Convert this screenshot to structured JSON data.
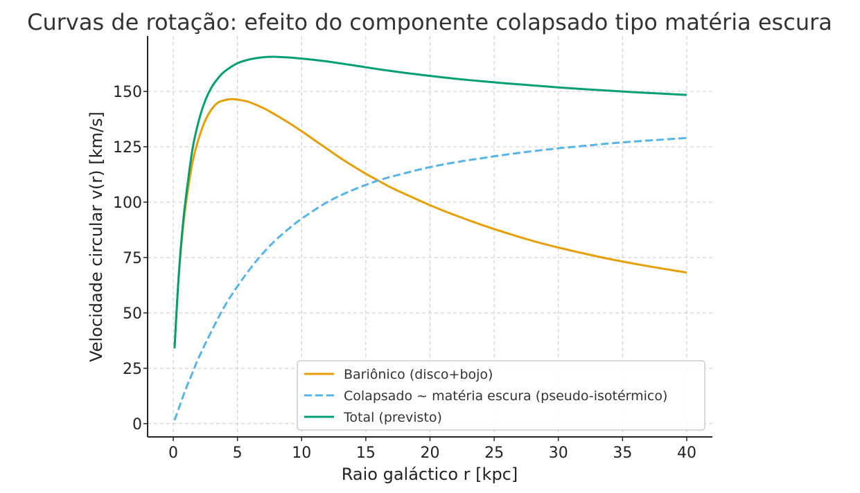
{
  "chart_data": {
    "type": "line",
    "title": "Curvas de rotação: efeito do componente colapsado tipo matéria escura",
    "xlabel": "Raio galáctico r [kpc]",
    "ylabel": "Velocidade circular v(r) [km/s]",
    "xlim": [
      -2,
      42
    ],
    "ylim": [
      -6,
      175
    ],
    "xticks": [
      0,
      5,
      10,
      15,
      20,
      25,
      30,
      35,
      40
    ],
    "yticks": [
      0,
      25,
      50,
      75,
      100,
      125,
      150
    ],
    "grid": true,
    "legend_position": "lower-right",
    "series": [
      {
        "name": "Bariônico (disco+bojo)",
        "color": "#E69F00",
        "dash": "solid",
        "x": [
          0.1,
          0.3,
          0.5,
          0.75,
          1,
          1.5,
          2,
          2.5,
          3,
          3.5,
          4,
          4.5,
          5,
          5.5,
          6,
          7,
          8,
          9,
          10,
          11,
          12,
          13,
          14,
          15,
          16,
          17,
          18,
          20,
          22,
          24,
          26,
          28,
          30,
          32,
          34,
          36,
          38,
          40
        ],
        "y": [
          34,
          55,
          72,
          88,
          100,
          118,
          129,
          137,
          142,
          145,
          146,
          146.5,
          146.3,
          145.8,
          145,
          142.5,
          139.3,
          135.8,
          132,
          128,
          124,
          120,
          116.3,
          112.8,
          109.6,
          106.5,
          103.8,
          98.6,
          94,
          89.8,
          86,
          82.5,
          79.5,
          76.8,
          74.3,
          72.1,
          70.1,
          68.2
        ]
      },
      {
        "name": "Colapsado ~ matéria escura (pseudo-isotérmico)",
        "color": "#56B4E9",
        "dash": "dashed",
        "x": [
          0.1,
          0.5,
          1,
          1.5,
          2,
          3,
          4,
          5,
          6,
          7,
          8,
          9,
          10,
          12,
          14,
          16,
          18,
          20,
          22,
          24,
          26,
          28,
          30,
          32,
          34,
          36,
          38,
          40
        ],
        "y": [
          1.5,
          8,
          16,
          23,
          30,
          42,
          53,
          62,
          70,
          77,
          83,
          88,
          92.5,
          100,
          105.5,
          109.8,
          113,
          115.8,
          118,
          119.8,
          121.5,
          123,
          124.3,
          125.4,
          126.5,
          127.4,
          128.2,
          129
        ]
      },
      {
        "name": "Total (previsto)",
        "color": "#009E73",
        "dash": "solid",
        "x": [
          0.1,
          0.3,
          0.5,
          0.75,
          1,
          1.5,
          2,
          2.5,
          3,
          3.5,
          4,
          5,
          6,
          7,
          8,
          9,
          10,
          11,
          12,
          14,
          16,
          18,
          20,
          22,
          24,
          26,
          28,
          30,
          32,
          34,
          36,
          38,
          40
        ],
        "y": [
          34,
          55,
          73,
          90,
          103,
          124,
          137,
          146,
          152,
          156,
          159,
          162.7,
          164.5,
          165.4,
          165.6,
          165.3,
          164.8,
          164.2,
          163.5,
          161.8,
          160,
          158.4,
          157,
          155.7,
          154.6,
          153.6,
          152.7,
          151.8,
          151,
          150.3,
          149.6,
          149,
          148.4
        ]
      }
    ]
  }
}
